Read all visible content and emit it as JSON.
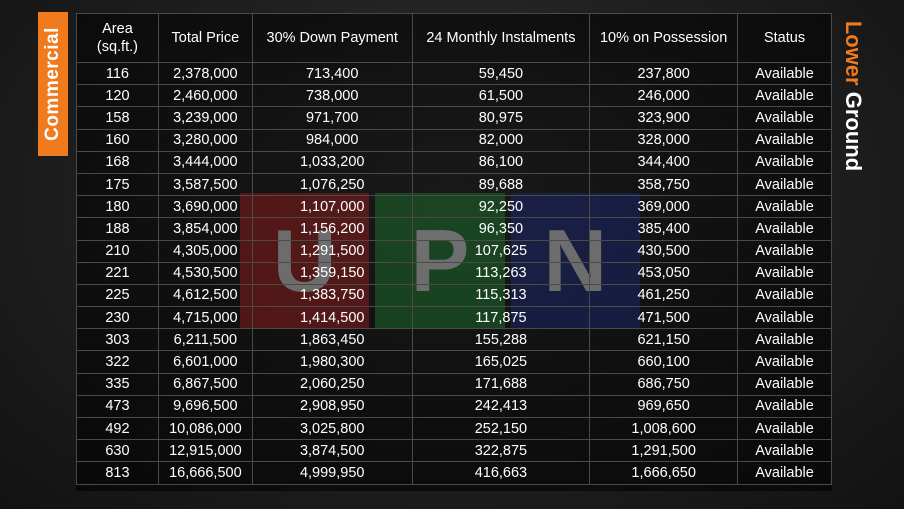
{
  "labels": {
    "left_tag": "Commercial",
    "right_tag_part1": "Lower",
    "right_tag_part2": "Ground"
  },
  "watermark": [
    "U",
    "P",
    "N"
  ],
  "colors": {
    "accent_orange": "#f07a1e",
    "watermark_red": "#a01e1e",
    "watermark_green": "#1e7a2e",
    "watermark_blue": "#1e2a7a"
  },
  "table": {
    "headers": [
      "Area\n(sq.ft.)",
      "Total Price",
      "30% Down Payment",
      "24 Monthly Instalments",
      "10% on Possession",
      "Status"
    ],
    "rows": [
      [
        "116",
        "2,378,000",
        "713,400",
        "59,450",
        "237,800",
        "Available"
      ],
      [
        "120",
        "2,460,000",
        "738,000",
        "61,500",
        "246,000",
        "Available"
      ],
      [
        "158",
        "3,239,000",
        "971,700",
        "80,975",
        "323,900",
        "Available"
      ],
      [
        "160",
        "3,280,000",
        "984,000",
        "82,000",
        "328,000",
        "Available"
      ],
      [
        "168",
        "3,444,000",
        "1,033,200",
        "86,100",
        "344,400",
        "Available"
      ],
      [
        "175",
        "3,587,500",
        "1,076,250",
        "89,688",
        "358,750",
        "Available"
      ],
      [
        "180",
        "3,690,000",
        "1,107,000",
        "92,250",
        "369,000",
        "Available"
      ],
      [
        "188",
        "3,854,000",
        "1,156,200",
        "96,350",
        "385,400",
        "Available"
      ],
      [
        "210",
        "4,305,000",
        "1,291,500",
        "107,625",
        "430,500",
        "Available"
      ],
      [
        "221",
        "4,530,500",
        "1,359,150",
        "113,263",
        "453,050",
        "Available"
      ],
      [
        "225",
        "4,612,500",
        "1,383,750",
        "115,313",
        "461,250",
        "Available"
      ],
      [
        "230",
        "4,715,000",
        "1,414,500",
        "117,875",
        "471,500",
        "Available"
      ],
      [
        "303",
        "6,211,500",
        "1,863,450",
        "155,288",
        "621,150",
        "Available"
      ],
      [
        "322",
        "6,601,000",
        "1,980,300",
        "165,025",
        "660,100",
        "Available"
      ],
      [
        "335",
        "6,867,500",
        "2,060,250",
        "171,688",
        "686,750",
        "Available"
      ],
      [
        "473",
        "9,696,500",
        "2,908,950",
        "242,413",
        "969,650",
        "Available"
      ],
      [
        "492",
        "10,086,000",
        "3,025,800",
        "252,150",
        "1,008,600",
        "Available"
      ],
      [
        "630",
        "12,915,000",
        "3,874,500",
        "322,875",
        "1,291,500",
        "Available"
      ],
      [
        "813",
        "16,666,500",
        "4,999,950",
        "416,663",
        "1,666,650",
        "Available"
      ]
    ]
  }
}
